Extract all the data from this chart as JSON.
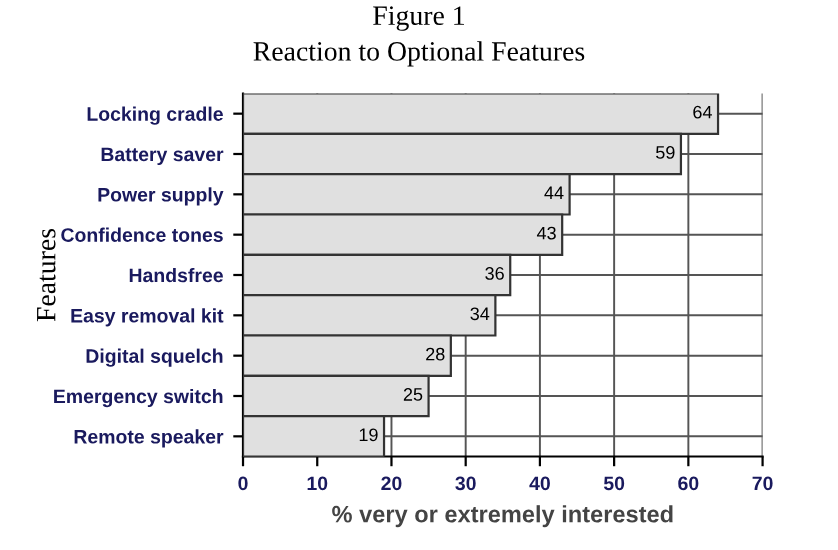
{
  "chart_data": {
    "type": "bar",
    "orientation": "horizontal",
    "title": "Figure 1",
    "subtitle": "Reaction to Optional Features",
    "xlabel": "% very or extremely interested",
    "ylabel": "Features",
    "categories": [
      "Locking cradle",
      "Battery saver",
      "Power supply",
      "Confidence tones",
      "Handsfree",
      "Easy removal kit",
      "Digital squelch",
      "Emergency switch",
      "Remote speaker"
    ],
    "values": [
      64,
      59,
      44,
      43,
      36,
      34,
      28,
      25,
      19
    ],
    "color": "#e0e0e0",
    "xlim": [
      0,
      70
    ],
    "xticks": [
      0,
      10,
      20,
      30,
      40,
      50,
      60,
      70
    ],
    "grid": true,
    "data_labels": true
  }
}
